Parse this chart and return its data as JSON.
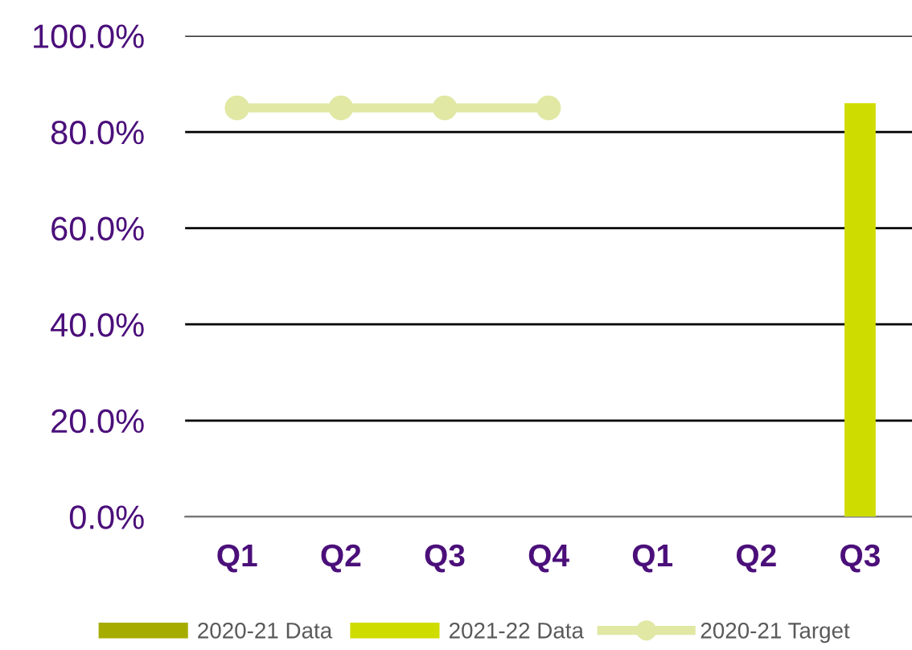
{
  "chart_data": {
    "type": "bar",
    "categories": [
      "Q1",
      "Q2",
      "Q3",
      "Q4",
      "Q1",
      "Q2",
      "Q3"
    ],
    "series": [
      {
        "name": "2020-21 Data",
        "color": "#a6ad00",
        "values": [
          null,
          null,
          null,
          null,
          null,
          null,
          null
        ]
      },
      {
        "name": "2021-22 Data",
        "color": "#cfdc00",
        "values": [
          null,
          null,
          null,
          null,
          null,
          null,
          86
        ]
      },
      {
        "name": "2020-21 Target",
        "type": "line",
        "color": "#e0e8a4",
        "marker": "circle",
        "values": [
          85,
          85,
          85,
          85,
          null,
          null,
          null
        ]
      }
    ],
    "ylim": [
      0,
      100
    ],
    "yticks": [
      {
        "value": 0,
        "label": "0.0%"
      },
      {
        "value": 20,
        "label": "20.0%"
      },
      {
        "value": 40,
        "label": "40.0%"
      },
      {
        "value": 60,
        "label": "60.0%"
      },
      {
        "value": 80,
        "label": "80.0%"
      },
      {
        "value": 100,
        "label": "100.0%"
      }
    ],
    "grid": "y",
    "legend": "bottom"
  }
}
